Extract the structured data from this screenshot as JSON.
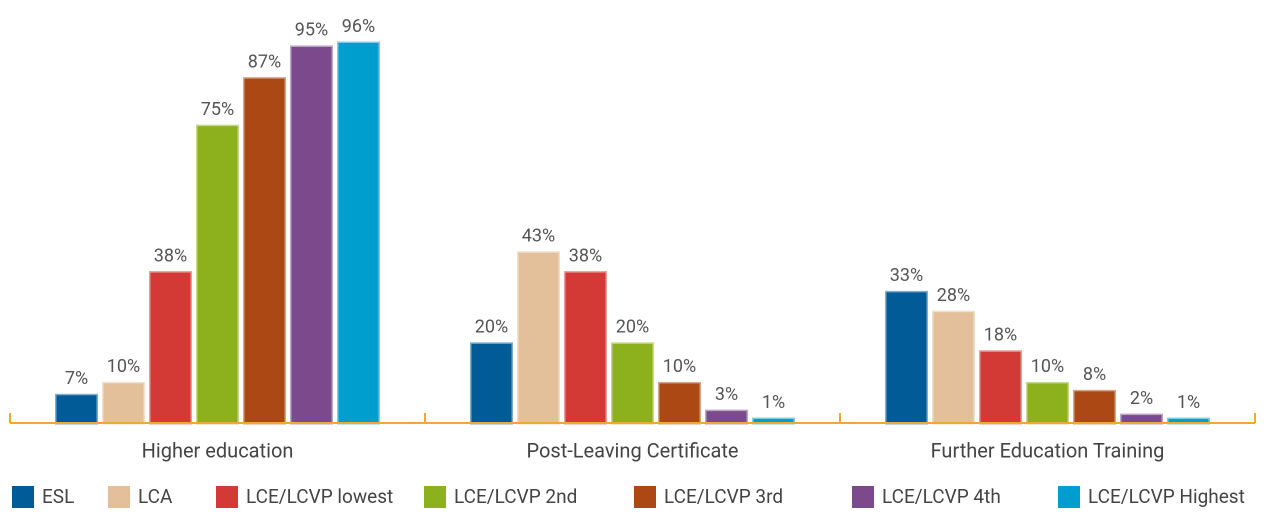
{
  "chart_data": {
    "type": "bar",
    "categories": [
      "Higher education",
      "Post-Leaving Certificate",
      "Further Education Training"
    ],
    "series": [
      {
        "name": "ESL",
        "color": "#005b96",
        "values": [
          7,
          20,
          33
        ],
        "value_labels": [
          "7%",
          "20%",
          "33%"
        ]
      },
      {
        "name": "LCA",
        "color": "#e3c09a",
        "values": [
          10,
          43,
          28
        ],
        "value_labels": [
          "10%",
          "43%",
          "28%"
        ]
      },
      {
        "name": "LCE/LCVP lowest",
        "color": "#d43a35",
        "values": [
          38,
          38,
          18
        ],
        "value_labels": [
          "38%",
          "38%",
          "18%"
        ]
      },
      {
        "name": "LCE/LCVP 2nd",
        "color": "#8db11c",
        "values": [
          75,
          20,
          10
        ],
        "value_labels": [
          "75%",
          "20%",
          "10%"
        ]
      },
      {
        "name": "LCE/LCVP 3rd",
        "color": "#ac4813",
        "values": [
          87,
          10,
          8
        ],
        "value_labels": [
          "87%",
          "10%",
          "8%"
        ]
      },
      {
        "name": "LCE/LCVP 4th",
        "color": "#7c4a8c",
        "values": [
          95,
          3,
          2
        ],
        "value_labels": [
          "95%",
          "3%",
          "2%"
        ]
      },
      {
        "name": "LCE/LCVP Highest",
        "color": "#009ecf",
        "values": [
          96,
          1,
          1
        ],
        "value_labels": [
          "96%",
          "1%",
          "1%"
        ]
      }
    ],
    "legend": "bottom"
  }
}
